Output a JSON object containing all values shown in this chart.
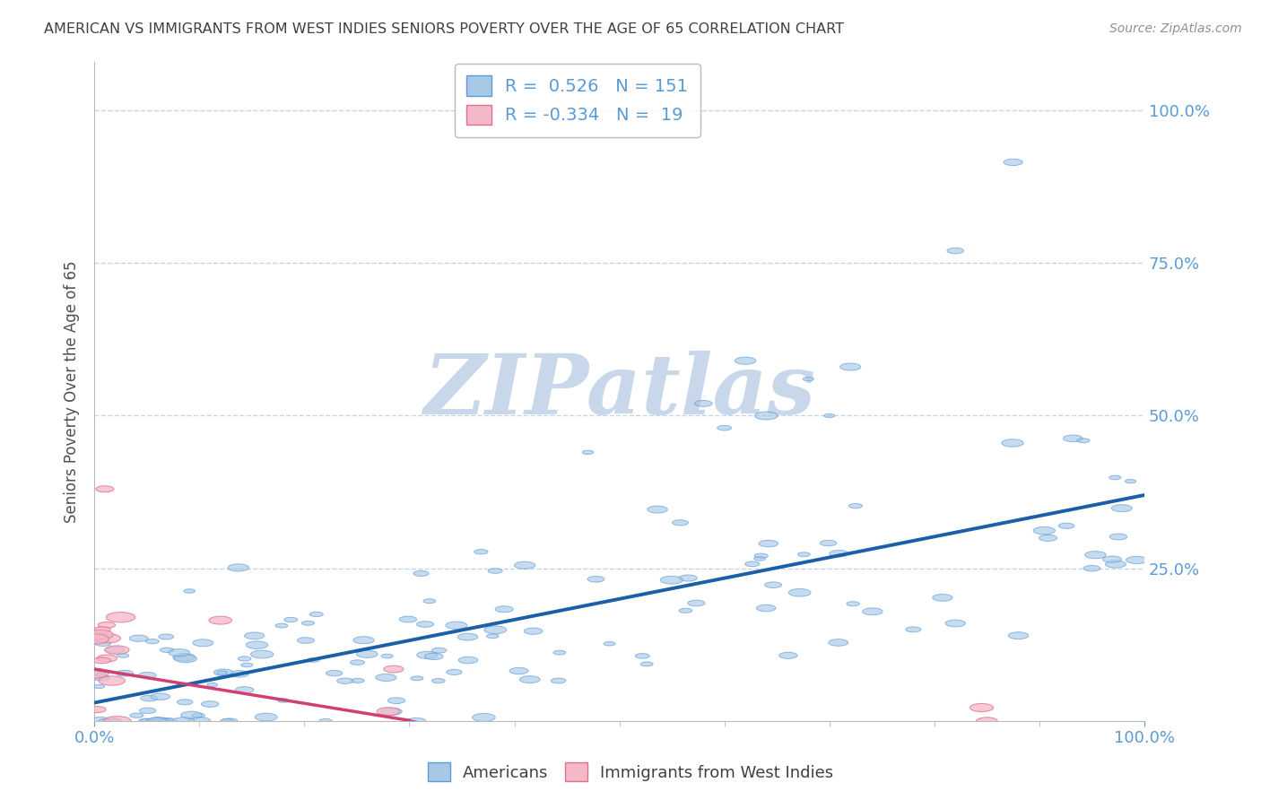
{
  "title": "AMERICAN VS IMMIGRANTS FROM WEST INDIES SENIORS POVERTY OVER THE AGE OF 65 CORRELATION CHART",
  "source": "Source: ZipAtlas.com",
  "ylabel": "Seniors Poverty Over the Age of 65",
  "xlabel": "",
  "xlim": [
    0.0,
    1.0
  ],
  "ylim": [
    0.0,
    1.08
  ],
  "blue_color": "#a8c8e8",
  "blue_edge": "#5b9bd5",
  "pink_color": "#f4b8c8",
  "pink_edge": "#e07090",
  "blue_line_color": "#1a5fa8",
  "pink_line_color": "#d04070",
  "R_blue": 0.526,
  "N_blue": 151,
  "R_pink": -0.334,
  "N_pink": 19,
  "watermark": "ZIPatlas",
  "watermark_color": "#c8d8ea",
  "background_color": "#ffffff",
  "grid_color": "#c8d4e4",
  "title_color": "#404040",
  "right_tick_color": "#5b9bd5",
  "blue_intercept": 0.03,
  "blue_slope": 0.34,
  "pink_intercept": 0.085,
  "pink_slope": -0.28
}
